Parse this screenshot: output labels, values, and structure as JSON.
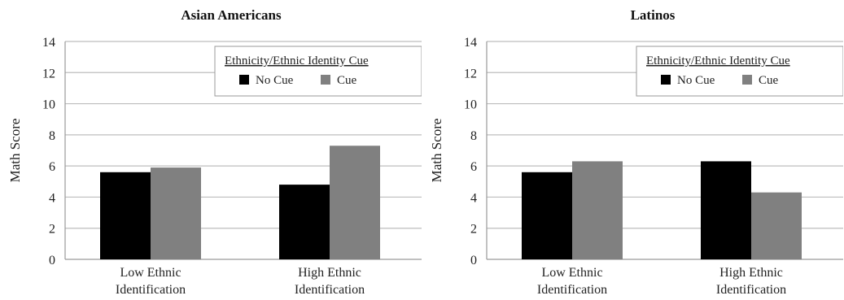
{
  "colors": {
    "no_cue": "#000000",
    "cue": "#808080",
    "grid": "#bdbdbd",
    "axis": "#9a9a9a"
  },
  "chart_data": [
    {
      "type": "bar",
      "title": "Asian Americans",
      "ylabel": "Math Score",
      "xlabel": "",
      "ylim": [
        0,
        14
      ],
      "yticks": [
        "0",
        "2",
        "4",
        "6",
        "8",
        "10",
        "12",
        "14"
      ],
      "grid": true,
      "legend_title": "Ethnicity/Ethnic Identity Cue",
      "legend_position": "top-right",
      "categories": [
        [
          "Low Ethnic",
          "Identification"
        ],
        [
          "High Ethnic",
          "Identification"
        ]
      ],
      "series": [
        {
          "name": "No Cue",
          "values": [
            5.6,
            4.8
          ]
        },
        {
          "name": "Cue",
          "values": [
            5.9,
            7.3
          ]
        }
      ]
    },
    {
      "type": "bar",
      "title": "Latinos",
      "ylabel": "Math Score",
      "xlabel": "",
      "ylim": [
        0,
        14
      ],
      "yticks": [
        "0",
        "2",
        "4",
        "6",
        "8",
        "10",
        "12",
        "14"
      ],
      "grid": true,
      "legend_title": "Ethnicity/Ethnic Identity Cue",
      "legend_position": "top-right",
      "categories": [
        [
          "Low Ethnic",
          "Identification"
        ],
        [
          "High Ethnic",
          "Identification"
        ]
      ],
      "series": [
        {
          "name": "No Cue",
          "values": [
            5.6,
            6.3
          ]
        },
        {
          "name": "Cue",
          "values": [
            6.3,
            4.3
          ]
        }
      ]
    }
  ]
}
